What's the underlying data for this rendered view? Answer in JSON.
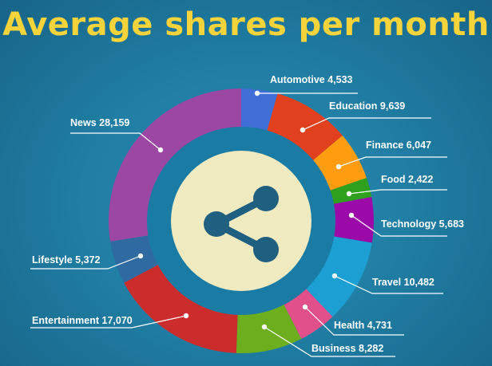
{
  "chart_data": {
    "type": "pie",
    "title": "Average shares per month",
    "categories": [
      "Automotive",
      "Education",
      "Finance",
      "Food",
      "Technology",
      "Travel",
      "Health",
      "Business",
      "Entertainment",
      "Lifestyle",
      "News"
    ],
    "values": [
      4533,
      9639,
      6047,
      2422,
      5683,
      10482,
      4731,
      8282,
      17070,
      5372,
      28159
    ],
    "labels": [
      "Automotive  4,533",
      "Education 9,639",
      "Finance 6,047",
      "Food 2,422",
      "Technology 5,683",
      "Travel 10,482",
      "Health 4,731",
      "Business 8,282",
      "Entertainment 17,070",
      "Lifestyle  5,372",
      "News 28,159"
    ],
    "colors": [
      "#3f6fd6",
      "#e0401e",
      "#ff9c10",
      "#2ea01e",
      "#9b0aa8",
      "#1c9fd2",
      "#e1508a",
      "#6cae1e",
      "#cb2c2c",
      "#2f6aa0",
      "#9b47a3"
    ],
    "center_icon": "share-icon",
    "center_color": "#efeac0",
    "icon_color": "#1f5f7f"
  }
}
